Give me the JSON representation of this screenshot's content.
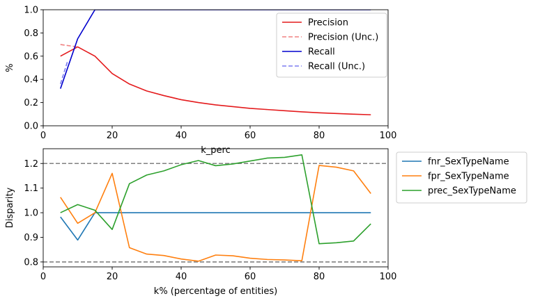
{
  "chart_data": [
    {
      "type": "line",
      "xlabel": "k_perc",
      "ylabel": "%",
      "xlim": [
        0,
        100
      ],
      "ylim": [
        0,
        1.0
      ],
      "x_ticks": [
        "0",
        "20",
        "40",
        "60",
        "80",
        "100"
      ],
      "y_ticks": [
        "0.0",
        "0.2",
        "0.4",
        "0.6",
        "0.8",
        "1.0"
      ],
      "legend": "top-right",
      "grid": false,
      "series": [
        {
          "name": "Precision",
          "color": "#e41a1c",
          "style": "solid",
          "x": [
            5,
            10,
            15,
            20,
            25,
            30,
            35,
            40,
            45,
            50,
            55,
            60,
            65,
            70,
            75,
            80,
            85,
            90,
            95
          ],
          "y": [
            0.6,
            0.68,
            0.6,
            0.45,
            0.36,
            0.3,
            0.26,
            0.225,
            0.2,
            0.18,
            0.165,
            0.15,
            0.14,
            0.13,
            0.12,
            0.112,
            0.106,
            0.1,
            0.095
          ]
        },
        {
          "name": "Precision (Unc.)",
          "color": "#f08080",
          "style": "dashed",
          "x": [
            5,
            10
          ],
          "y": [
            0.7,
            0.68
          ]
        },
        {
          "name": "Recall",
          "color": "#0000cd",
          "style": "solid",
          "x": [
            5,
            10,
            15,
            20,
            25,
            30,
            35,
            40,
            45,
            50,
            55,
            60,
            65,
            70,
            75,
            80,
            85,
            90,
            95
          ],
          "y": [
            0.32,
            0.75,
            1.0,
            1.0,
            1.0,
            1.0,
            1.0,
            1.0,
            1.0,
            1.0,
            1.0,
            1.0,
            1.0,
            1.0,
            1.0,
            1.0,
            1.0,
            1.0,
            1.0
          ]
        },
        {
          "name": "Recall (Unc.)",
          "color": "#7b7bf0",
          "style": "dashed",
          "x": [
            5,
            7
          ],
          "y": [
            0.36,
            0.55
          ]
        }
      ]
    },
    {
      "type": "line",
      "xlabel": "k% (percentage of entities)",
      "ylabel": "Disparity",
      "xlim": [
        0,
        100
      ],
      "ylim": [
        0.78,
        1.26
      ],
      "x_ticks": [
        "0",
        "20",
        "40",
        "60",
        "80",
        "100"
      ],
      "y_ticks": [
        "0.8",
        "0.9",
        "1.0",
        "1.1",
        "1.2"
      ],
      "legend": "outside-right",
      "grid": false,
      "reference_lines": [
        0.8,
        1.2
      ],
      "series": [
        {
          "name": "fnr_SexTypeName",
          "color": "#1f77b4",
          "style": "solid",
          "x": [
            5,
            10,
            15,
            20,
            25,
            30,
            35,
            40,
            45,
            50,
            55,
            60,
            65,
            70,
            75,
            80,
            85,
            90,
            95
          ],
          "y": [
            0.983,
            0.889,
            1.0,
            1.0,
            1.0,
            1.0,
            1.0,
            1.0,
            1.0,
            1.0,
            1.0,
            1.0,
            1.0,
            1.0,
            1.0,
            1.0,
            1.0,
            1.0,
            1.0
          ]
        },
        {
          "name": "fpr_SexTypeName",
          "color": "#ff7f0e",
          "style": "solid",
          "x": [
            5,
            10,
            15,
            20,
            25,
            30,
            35,
            40,
            45,
            50,
            55,
            60,
            65,
            70,
            75,
            80,
            85,
            90,
            95
          ],
          "y": [
            1.063,
            0.957,
            1.0,
            1.16,
            0.858,
            0.832,
            0.826,
            0.812,
            0.803,
            0.828,
            0.825,
            0.815,
            0.81,
            0.808,
            0.805,
            1.192,
            1.185,
            1.17,
            1.078
          ]
        },
        {
          "name": "prec_SexTypeName",
          "color": "#2ca02c",
          "style": "solid",
          "x": [
            5,
            10,
            15,
            20,
            25,
            30,
            35,
            40,
            45,
            50,
            55,
            60,
            65,
            70,
            75,
            80,
            85,
            90,
            95
          ],
          "y": [
            1.0,
            1.033,
            1.01,
            0.932,
            1.118,
            1.153,
            1.17,
            1.195,
            1.212,
            1.191,
            1.198,
            1.21,
            1.222,
            1.225,
            1.235,
            0.874,
            0.878,
            0.885,
            0.955
          ]
        }
      ]
    }
  ]
}
